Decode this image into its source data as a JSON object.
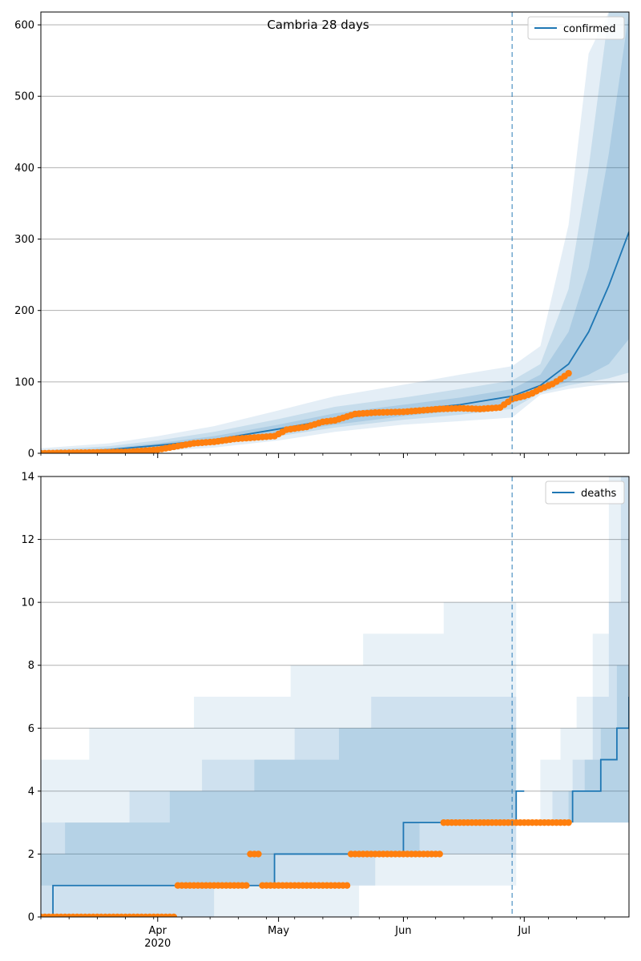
{
  "title": "Cambria 28 days",
  "colors": {
    "model": "#1f77b4",
    "observed": "#ff7f0e",
    "grid": "#b0b0b0"
  },
  "x_axis": {
    "start": "2020-03-03",
    "end": "2020-07-27",
    "forecast_start": "2020-06-28",
    "month_ticks": [
      {
        "date": "2020-04-01",
        "label": "Apr",
        "sublabel": "2020"
      },
      {
        "date": "2020-05-01",
        "label": "May",
        "sublabel": ""
      },
      {
        "date": "2020-06-01",
        "label": "Jun",
        "sublabel": ""
      },
      {
        "date": "2020-07-01",
        "label": "Jul",
        "sublabel": ""
      }
    ]
  },
  "chart_data": [
    {
      "type": "line",
      "legend": "confirmed",
      "legend_position": "top-right",
      "grid": "y",
      "ylim": [
        0,
        618
      ],
      "yticks": [
        0,
        100,
        200,
        300,
        400,
        500,
        600
      ],
      "model_series": {
        "x": [
          "2020-03-03",
          "2020-03-20",
          "2020-04-01",
          "2020-04-15",
          "2020-05-01",
          "2020-05-15",
          "2020-06-01",
          "2020-06-15",
          "2020-06-28",
          "2020-07-05",
          "2020-07-12",
          "2020-07-17",
          "2020-07-22",
          "2020-07-27"
        ],
        "median": [
          0,
          5,
          11,
          19,
          34,
          48,
          60,
          68,
          80,
          95,
          125,
          170,
          235,
          310
        ],
        "band_inner": {
          "low": [
            0,
            3,
            8,
            15,
            28,
            40,
            52,
            60,
            70,
            88,
            100,
            110,
            125,
            160
          ],
          "high": [
            2,
            7,
            14,
            24,
            40,
            56,
            68,
            78,
            90,
            110,
            170,
            260,
            420,
            618
          ]
        },
        "band_mid": {
          "low": [
            0,
            2,
            6,
            12,
            24,
            36,
            47,
            54,
            62,
            85,
            95,
            100,
            105,
            113
          ],
          "high": [
            4,
            10,
            18,
            30,
            48,
            65,
            78,
            90,
            102,
            125,
            230,
            400,
            618,
            618
          ]
        },
        "band_outer": {
          "low": [
            0,
            0,
            3,
            8,
            18,
            30,
            40,
            45,
            50,
            82,
            90,
            94,
            97,
            100
          ],
          "high": [
            7,
            14,
            24,
            38,
            60,
            80,
            96,
            110,
            122,
            150,
            320,
            560,
            618,
            618
          ]
        }
      },
      "observed": {
        "x": [
          "2020-03-03",
          "2020-03-15",
          "2020-03-25",
          "2020-04-01",
          "2020-04-10",
          "2020-04-15",
          "2020-04-20",
          "2020-04-25",
          "2020-04-30",
          "2020-05-03",
          "2020-05-08",
          "2020-05-12",
          "2020-05-15",
          "2020-05-20",
          "2020-05-25",
          "2020-06-01",
          "2020-06-10",
          "2020-06-15",
          "2020-06-20",
          "2020-06-25",
          "2020-06-28",
          "2020-07-01",
          "2020-07-03",
          "2020-07-05",
          "2020-07-08",
          "2020-07-10",
          "2020-07-12"
        ],
        "y": [
          0,
          1,
          2,
          5,
          14,
          16,
          20,
          22,
          24,
          33,
          37,
          44,
          46,
          55,
          57,
          58,
          62,
          63,
          62,
          64,
          76,
          80,
          84,
          90,
          97,
          104,
          112
        ]
      }
    },
    {
      "type": "line",
      "legend": "deaths",
      "legend_position": "top-right",
      "grid": "y",
      "ylim": [
        0,
        14
      ],
      "yticks": [
        0,
        2,
        4,
        6,
        8,
        10,
        12,
        14
      ],
      "model_series": {
        "step": true,
        "x": [
          "2020-03-03",
          "2020-03-06",
          "2020-04-30",
          "2020-05-01",
          "2020-06-01",
          "2020-06-29",
          "2020-07-01"
        ],
        "median": [
          0,
          1,
          2,
          2,
          3,
          4,
          4
        ],
        "forecast_x": [
          "2020-07-13",
          "2020-07-20",
          "2020-07-24",
          "2020-07-27"
        ],
        "forecast_median": [
          4,
          5,
          6,
          7
        ]
      },
      "observed": {
        "x": [
          "2020-03-03",
          "2020-04-05",
          "2020-04-06",
          "2020-04-23",
          "2020-04-24",
          "2020-04-26",
          "2020-04-27",
          "2020-05-18",
          "2020-05-19",
          "2020-06-10",
          "2020-06-11",
          "2020-07-12"
        ],
        "y": [
          0,
          0,
          1,
          1,
          2,
          2,
          1,
          1,
          2,
          2,
          3,
          3
        ]
      }
    }
  ]
}
